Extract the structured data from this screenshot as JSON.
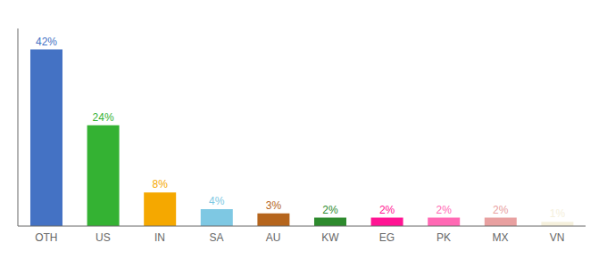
{
  "chart_data": {
    "type": "bar",
    "categories": [
      "OTH",
      "US",
      "IN",
      "SA",
      "AU",
      "KW",
      "EG",
      "PK",
      "MX",
      "VN"
    ],
    "values": [
      42,
      24,
      8,
      4,
      3,
      2,
      2,
      2,
      2,
      1
    ],
    "value_labels": [
      "42%",
      "24%",
      "8%",
      "4%",
      "3%",
      "2%",
      "2%",
      "2%",
      "2%",
      "1%"
    ],
    "colors": [
      "#4472C4",
      "#34B233",
      "#F5A800",
      "#7EC8E3",
      "#B5651D",
      "#2D8A2D",
      "#FF1493",
      "#FF69B4",
      "#E8A0A0",
      "#F5F0DC"
    ],
    "ylim": [
      0,
      47
    ],
    "grid": false,
    "data_labels": true,
    "tick_labels": "x"
  }
}
